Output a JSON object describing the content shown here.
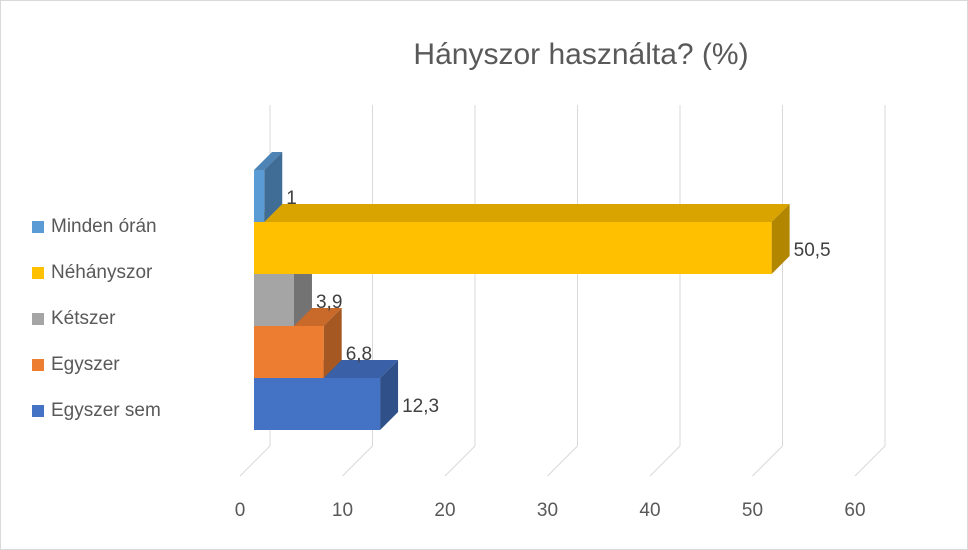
{
  "chart_data": {
    "type": "bar",
    "orientation": "horizontal",
    "style": "3d-clustered",
    "title": "Hányszor használta? (%)",
    "categories": [
      "Egyszer sem",
      "Egyszer",
      "Kétszer",
      "Néhányszor",
      "Minden órán"
    ],
    "values": [
      12.3,
      6.8,
      3.9,
      50.5,
      1
    ],
    "value_labels": [
      "12,3",
      "6,8",
      "3,9",
      "50,5",
      "1"
    ],
    "colors": [
      "#4472c4",
      "#ed7d31",
      "#a5a5a5",
      "#ffc000",
      "#5b9bd5"
    ],
    "legend_order": [
      "Minden órán",
      "Néhányszor",
      "Kétszer",
      "Egyszer",
      "Egyszer sem"
    ],
    "legend_placement": "left",
    "xlim": [
      0,
      60
    ],
    "xticks": [
      "0",
      "10",
      "20",
      "30",
      "40",
      "50",
      "60"
    ],
    "grid": true
  }
}
